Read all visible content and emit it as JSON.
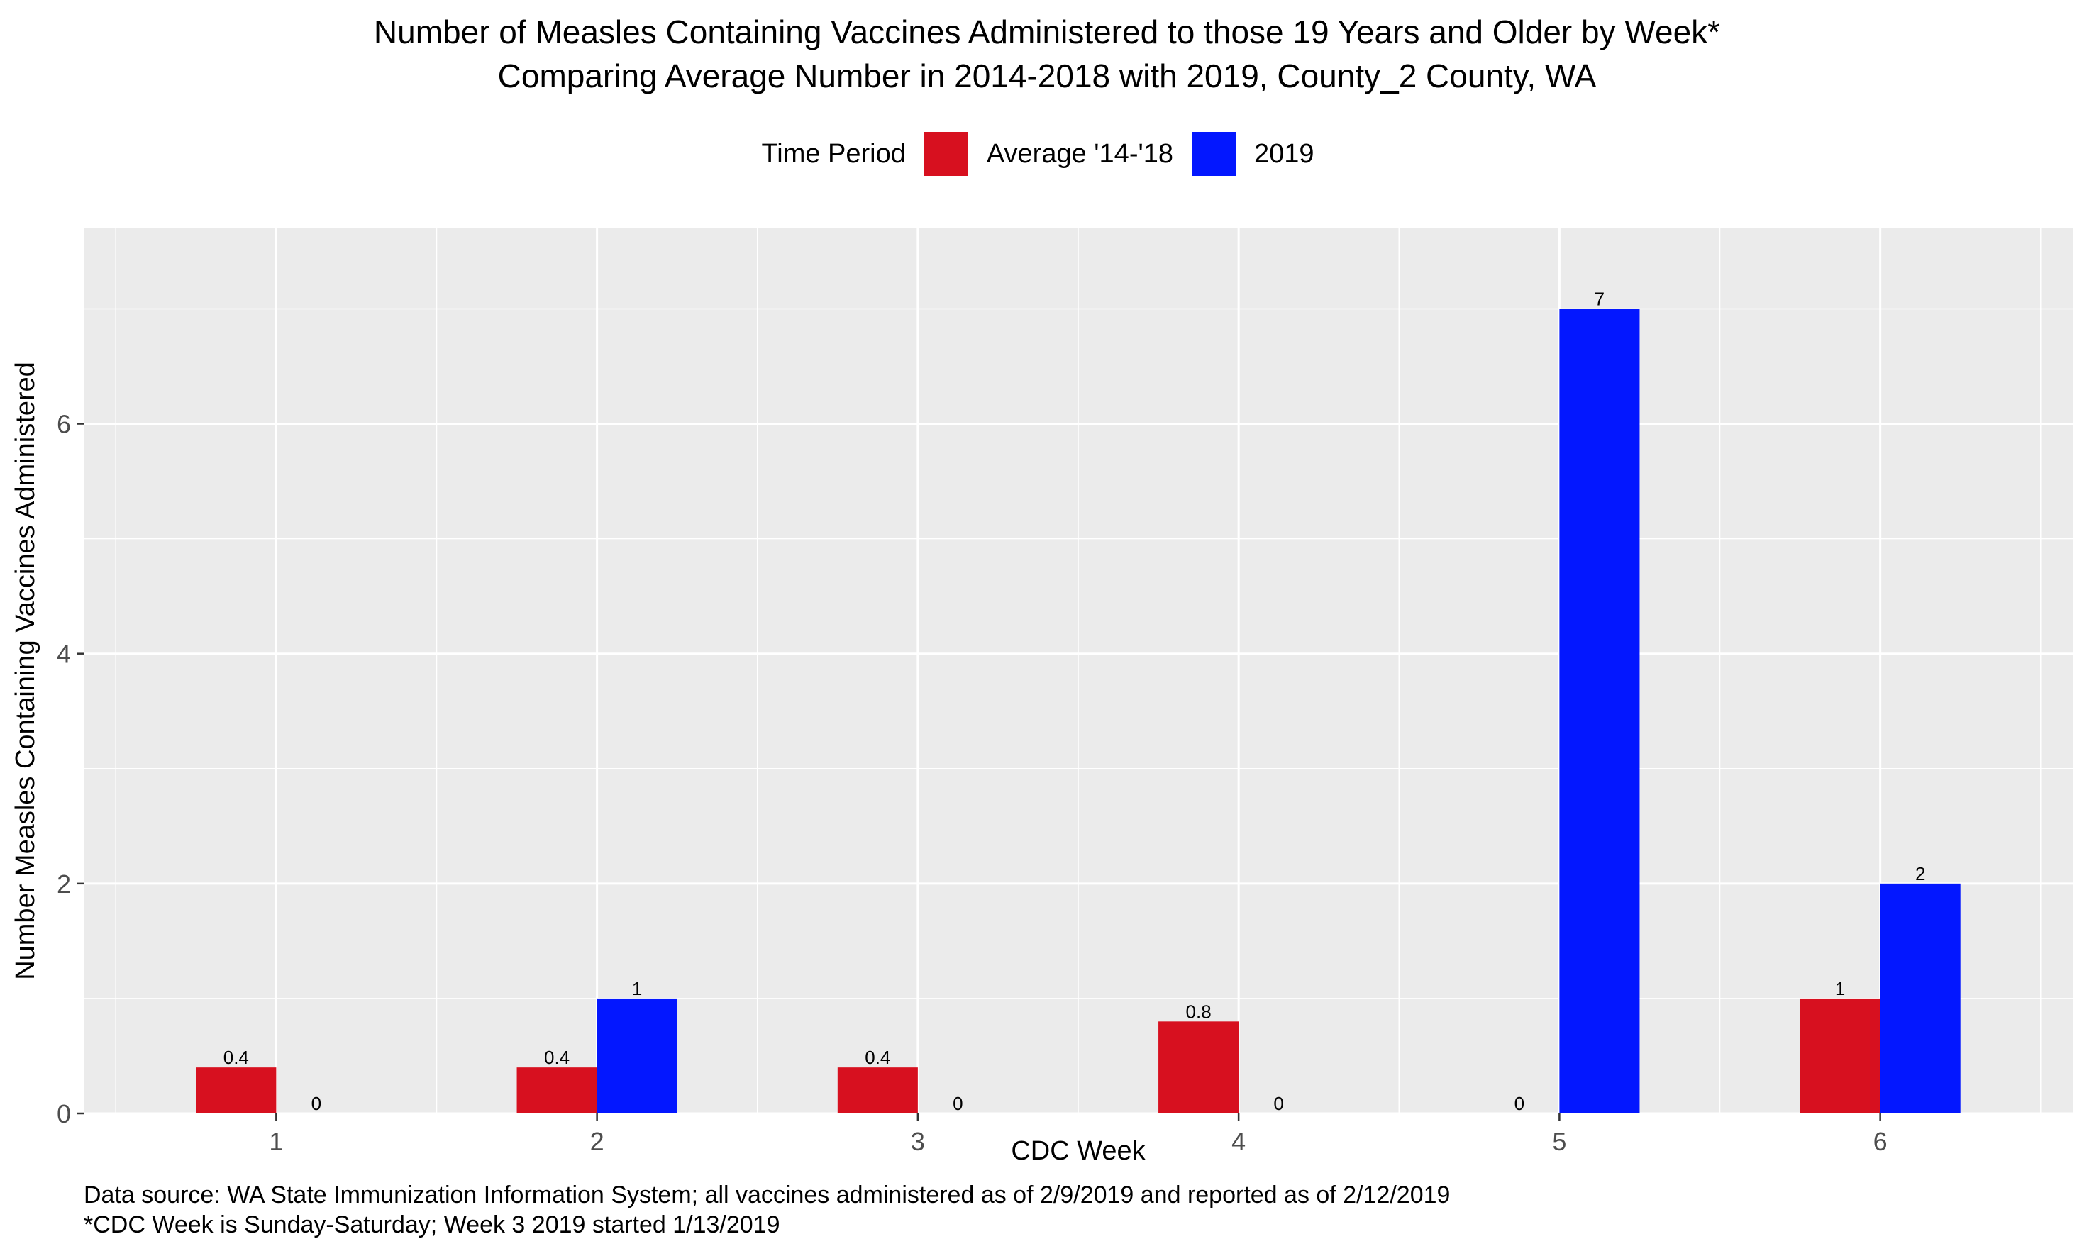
{
  "chart_data": {
    "type": "bar",
    "title": "Number of Measles Containing Vaccines Administered to those 19 Years and Older by Week*",
    "subtitle": "Comparing Average Number in 2014-2018 with 2019, County_2 County, WA",
    "xlabel": "CDC Week",
    "ylabel": "Number Measles Containing Vaccines Administered",
    "categories": [
      "1",
      "2",
      "3",
      "4",
      "5",
      "6"
    ],
    "series": [
      {
        "name": "Average '14-'18",
        "color": "#D7101F",
        "values": [
          0.4,
          0.4,
          0.4,
          0.8,
          0,
          1
        ],
        "labels": [
          "0.4",
          "0.4",
          "0.4",
          "0.8",
          "0",
          "1"
        ]
      },
      {
        "name": "2019",
        "color": "#0317FF",
        "values": [
          0,
          1,
          0,
          0,
          7,
          2
        ],
        "labels": [
          "0",
          "1",
          "0",
          "0",
          "7",
          "2"
        ]
      }
    ],
    "ylim": [
      0,
      7.7
    ],
    "yticks": [
      0,
      2,
      4,
      6
    ],
    "legend": {
      "title": "Time Period",
      "position": "top"
    },
    "grid": true,
    "panel_background": "#EBEBEB",
    "grid_color": "#FFFFFF",
    "caption": [
      "Data source: WA State Immunization Information System; all vaccines administered as of 2/9/2019 and reported as of 2/12/2019",
      "*CDC Week is Sunday-Saturday; Week 3 2019 started 1/13/2019"
    ]
  }
}
